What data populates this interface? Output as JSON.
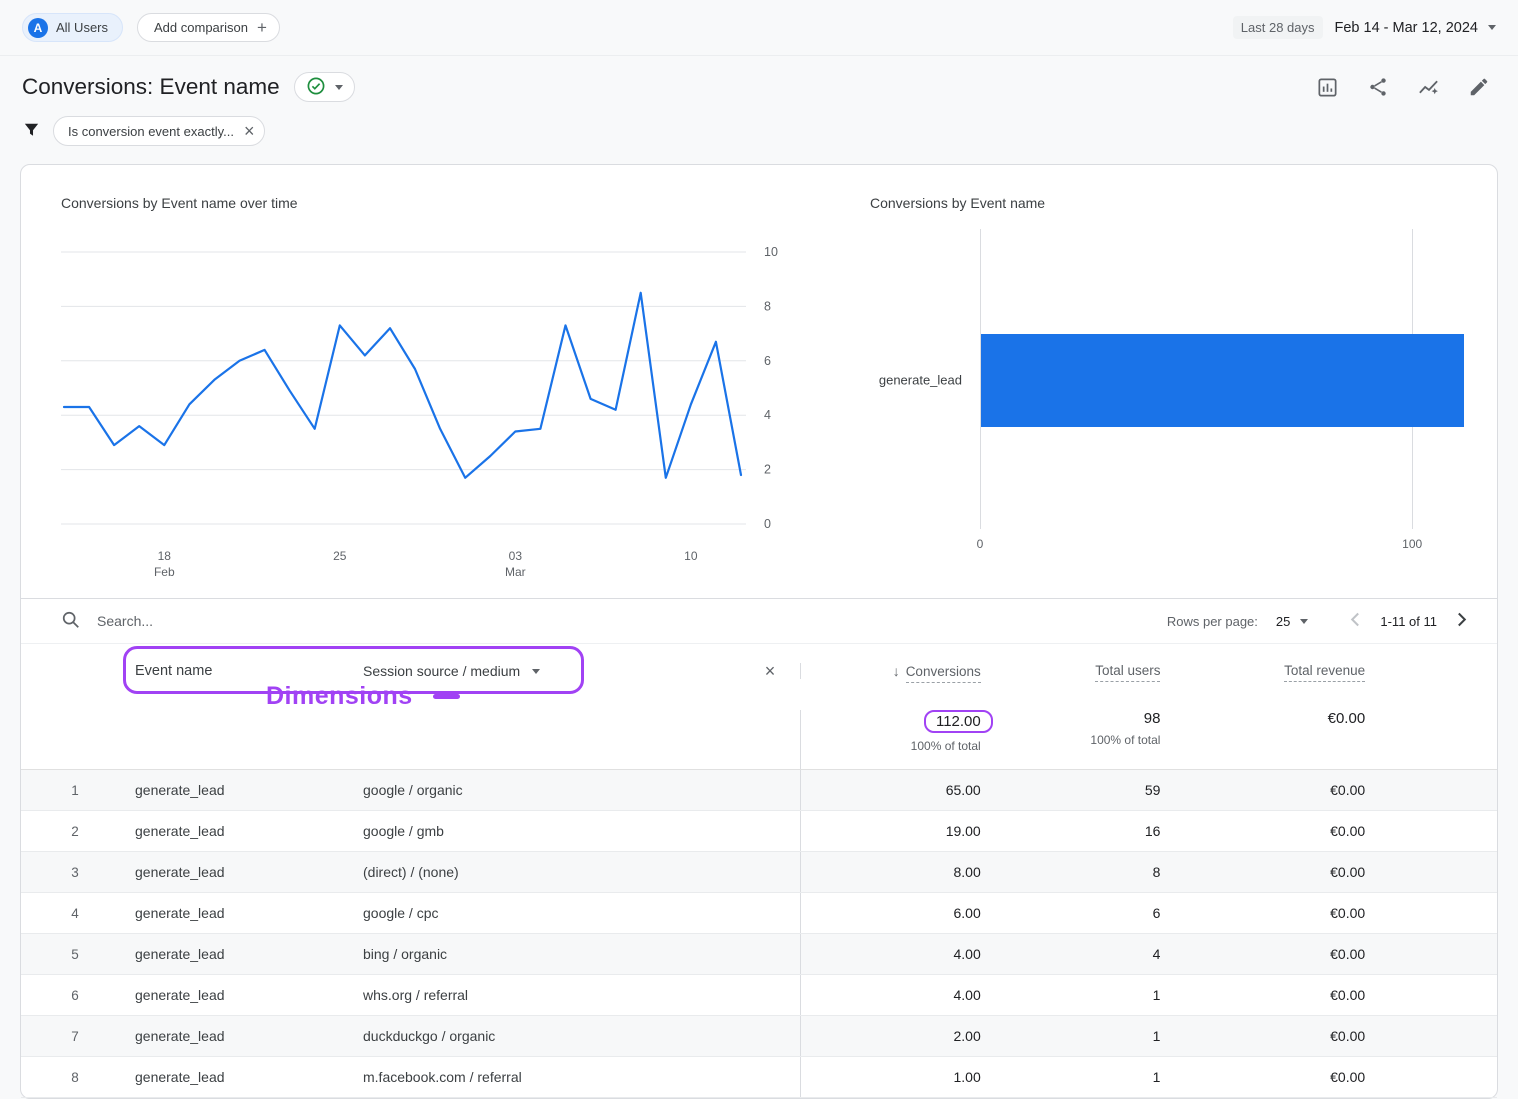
{
  "colors": {
    "brand_blue": "#1a73e8"
  },
  "topbar": {
    "avatar_letter": "A",
    "all_users_label": "All Users",
    "add_comparison_label": "Add comparison",
    "date_preset": "Last 28 days",
    "date_range": "Feb 14 - Mar 12, 2024"
  },
  "header": {
    "title": "Conversions: Event name",
    "filter_chip": "Is conversion event exactly..."
  },
  "annotations": {
    "dimensions_label": "Dimensions",
    "highlight_color": "#a142f4"
  },
  "toolbar": {
    "search_placeholder": "Search...",
    "rows_per_page_label": "Rows per page:",
    "rows_per_page_value": "25",
    "pagination_label": "1-11 of 11"
  },
  "table": {
    "headers": {
      "event_name": "Event name",
      "session_source_medium": "Session source / medium",
      "conversions": "Conversions",
      "total_users": "Total users",
      "total_revenue": "Total revenue"
    },
    "totals": {
      "conversions": "112.00",
      "conversions_pct": "100% of total",
      "total_users": "98",
      "total_users_pct": "100% of total",
      "total_revenue": "€0.00"
    },
    "rows": [
      {
        "num": "1",
        "event": "generate_lead",
        "source": "google / organic",
        "conversions": "65.00",
        "users": "59",
        "revenue": "€0.00"
      },
      {
        "num": "2",
        "event": "generate_lead",
        "source": "google / gmb",
        "conversions": "19.00",
        "users": "16",
        "revenue": "€0.00"
      },
      {
        "num": "3",
        "event": "generate_lead",
        "source": "(direct) / (none)",
        "conversions": "8.00",
        "users": "8",
        "revenue": "€0.00"
      },
      {
        "num": "4",
        "event": "generate_lead",
        "source": "google / cpc",
        "conversions": "6.00",
        "users": "6",
        "revenue": "€0.00"
      },
      {
        "num": "5",
        "event": "generate_lead",
        "source": "bing / organic",
        "conversions": "4.00",
        "users": "4",
        "revenue": "€0.00"
      },
      {
        "num": "6",
        "event": "generate_lead",
        "source": "whs.org / referral",
        "conversions": "4.00",
        "users": "1",
        "revenue": "€0.00"
      },
      {
        "num": "7",
        "event": "generate_lead",
        "source": "duckduckgo / organic",
        "conversions": "2.00",
        "users": "1",
        "revenue": "€0.00"
      },
      {
        "num": "8",
        "event": "generate_lead",
        "source": "m.facebook.com / referral",
        "conversions": "1.00",
        "users": "1",
        "revenue": "€0.00"
      }
    ]
  },
  "chart_data": [
    {
      "type": "line",
      "title": "Conversions by Event name over time",
      "series_name": "Conversions",
      "x": [
        "Feb 14",
        "Feb 15",
        "Feb 16",
        "Feb 17",
        "Feb 18",
        "Feb 19",
        "Feb 20",
        "Feb 21",
        "Feb 22",
        "Feb 23",
        "Feb 24",
        "Feb 25",
        "Feb 26",
        "Feb 27",
        "Feb 28",
        "Feb 29",
        "Mar 01",
        "Mar 02",
        "Mar 03",
        "Mar 04",
        "Mar 05",
        "Mar 06",
        "Mar 07",
        "Mar 08",
        "Mar 09",
        "Mar 10",
        "Mar 11",
        "Mar 12"
      ],
      "values": [
        4.3,
        4.3,
        2.9,
        3.6,
        2.9,
        4.4,
        5.3,
        6.0,
        6.4,
        4.9,
        3.5,
        7.3,
        6.2,
        7.2,
        5.7,
        3.5,
        1.7,
        2.5,
        3.4,
        3.5,
        7.3,
        4.6,
        4.2,
        8.5,
        1.7,
        4.4,
        6.7,
        1.8
      ],
      "ylim": [
        0,
        10
      ],
      "yticks": [
        0,
        2,
        4,
        6,
        8,
        10
      ],
      "yticks_side": "right",
      "xticks": [
        {
          "index": 4,
          "top": "18",
          "bottom": "Feb"
        },
        {
          "index": 11,
          "top": "25",
          "bottom": ""
        },
        {
          "index": 18,
          "top": "03",
          "bottom": "Mar"
        },
        {
          "index": 25,
          "top": "10",
          "bottom": ""
        }
      ],
      "grid": true,
      "line_color": "#1a73e8"
    },
    {
      "type": "bar",
      "title": "Conversions by Event name",
      "orientation": "horizontal",
      "categories": [
        "generate_lead"
      ],
      "values": [
        112
      ],
      "xlim": [
        0,
        115
      ],
      "xticks": [
        0,
        100
      ],
      "bar_color": "#1a73e8"
    }
  ]
}
